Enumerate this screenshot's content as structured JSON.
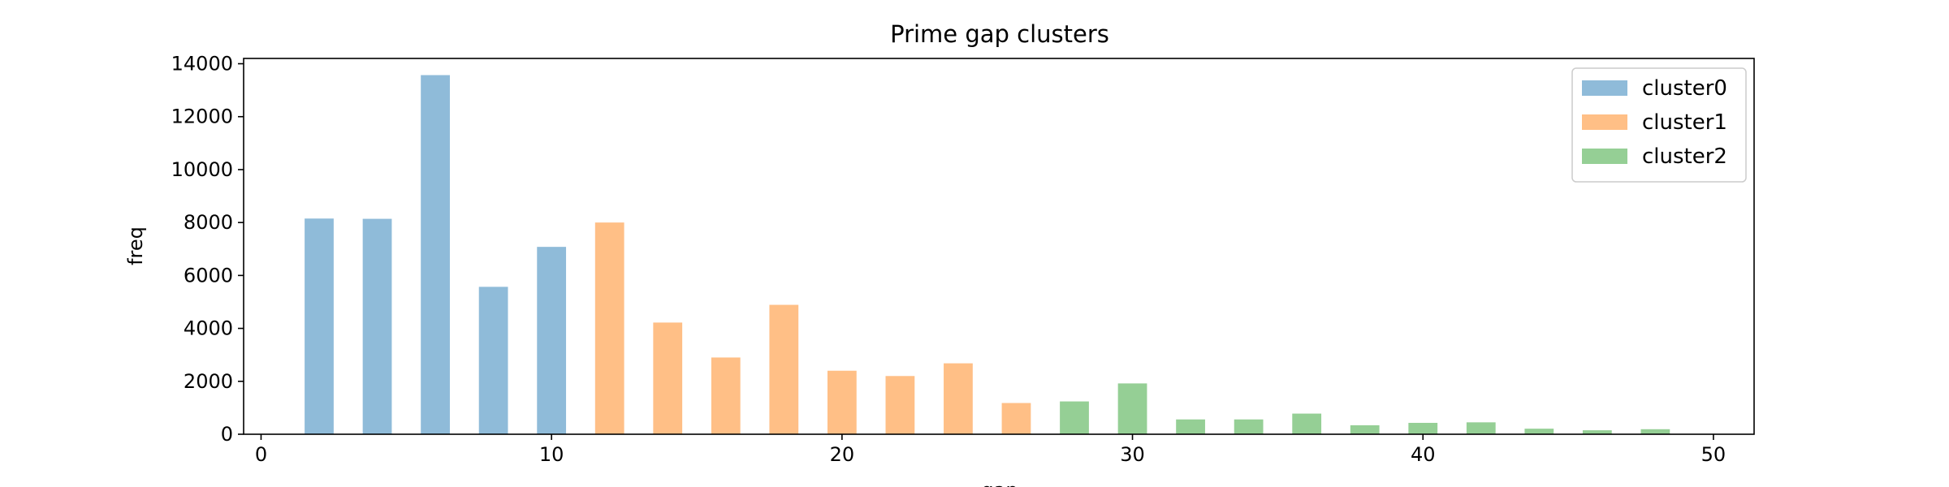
{
  "chart_data": {
    "type": "bar",
    "title": "Prime gap clusters",
    "xlabel": "gap",
    "ylabel": "freq",
    "xlim": [
      -0.6,
      51.4
    ],
    "ylim": [
      0,
      14200
    ],
    "xticks": [
      0,
      10,
      20,
      30,
      40,
      50
    ],
    "yticks": [
      0,
      2000,
      4000,
      6000,
      8000,
      10000,
      12000,
      14000
    ],
    "bar_width": 1,
    "grid": false,
    "legend_position": "top-right",
    "series": [
      {
        "name": "cluster0",
        "color": "#1f77b4",
        "x": [
          2,
          4,
          6,
          8,
          10
        ],
        "values": [
          8150,
          8140,
          13570,
          5570,
          7080
        ]
      },
      {
        "name": "cluster1",
        "color": "#ff7f0e",
        "x": [
          12,
          14,
          16,
          18,
          20,
          22,
          24,
          26
        ],
        "values": [
          8000,
          4220,
          2900,
          4890,
          2400,
          2200,
          2680,
          1180
        ]
      },
      {
        "name": "cluster2",
        "color": "#2ca02c",
        "x": [
          28,
          30,
          32,
          34,
          36,
          38,
          40,
          42,
          44,
          46,
          48
        ],
        "values": [
          1240,
          1920,
          560,
          560,
          780,
          340,
          430,
          450,
          210,
          150,
          190
        ]
      }
    ]
  }
}
